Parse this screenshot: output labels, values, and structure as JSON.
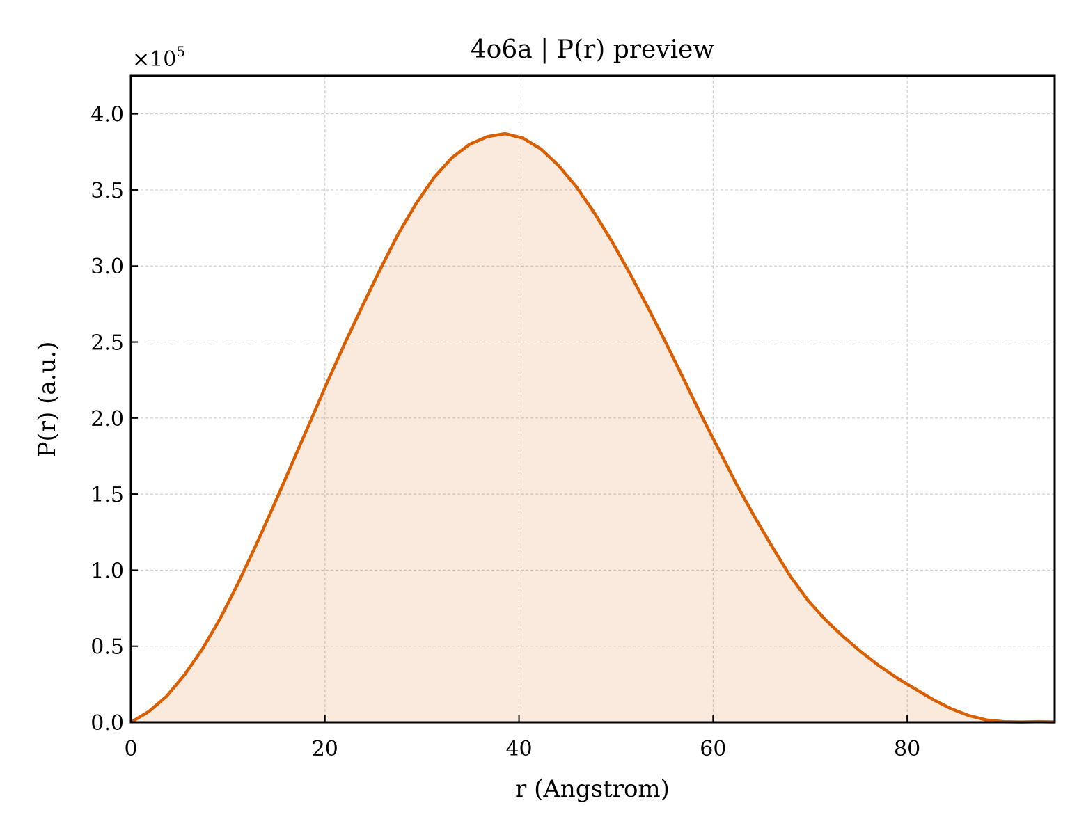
{
  "chart_data": {
    "type": "area",
    "title": "4o6a | P(r) preview",
    "xlabel": "r (Angstrom)",
    "ylabel": "P(r) (a.u.)",
    "y_multiplier": {
      "base": "×10",
      "exponent": "5"
    },
    "xlim": [
      0,
      95.2
    ],
    "ylim": [
      0,
      4.25
    ],
    "x_ticks": [
      0,
      20,
      40,
      60,
      80
    ],
    "x_tick_labels": [
      "0",
      "20",
      "40",
      "60",
      "80"
    ],
    "y_ticks": [
      0,
      0.5,
      1.0,
      1.5,
      2.0,
      2.5,
      3.0,
      3.5,
      4.0
    ],
    "y_tick_labels": [
      "0.0",
      "0.5",
      "1.0",
      "1.5",
      "2.0",
      "2.5",
      "3.0",
      "3.5",
      "4.0"
    ],
    "grid": true,
    "series": [
      {
        "x": [
          0,
          1.84,
          3.67,
          5.51,
          7.35,
          9.18,
          11.02,
          12.86,
          14.69,
          16.53,
          18.37,
          20.2,
          22.04,
          23.88,
          25.71,
          27.55,
          29.39,
          31.22,
          33.06,
          34.9,
          36.73,
          38.57,
          40.41,
          42.24,
          44.08,
          45.92,
          47.75,
          49.59,
          51.43,
          53.26,
          55.1,
          56.94,
          58.77,
          60.61,
          62.45,
          64.28,
          66.12,
          67.96,
          69.79,
          71.63,
          73.47,
          75.3,
          77.14,
          78.98,
          80.81,
          82.65,
          84.49,
          86.32,
          88.16,
          90.0,
          91.8,
          93.6,
          95.2
        ],
        "y": [
          0.0,
          0.07,
          0.17,
          0.31,
          0.48,
          0.68,
          0.91,
          1.16,
          1.42,
          1.69,
          1.96,
          2.23,
          2.49,
          2.74,
          2.98,
          3.21,
          3.41,
          3.58,
          3.71,
          3.8,
          3.85,
          3.87,
          3.84,
          3.77,
          3.66,
          3.52,
          3.35,
          3.16,
          2.95,
          2.73,
          2.5,
          2.26,
          2.02,
          1.79,
          1.56,
          1.35,
          1.15,
          0.96,
          0.8,
          0.67,
          0.56,
          0.46,
          0.37,
          0.29,
          0.22,
          0.15,
          0.09,
          0.045,
          0.015,
          0.003,
          0.002,
          0.004,
          0.002
        ]
      }
    ],
    "line_color": "#d95f02",
    "fill_color": "#d95f02",
    "fill_opacity": 0.13,
    "grid_color": "#c8c8c8"
  }
}
